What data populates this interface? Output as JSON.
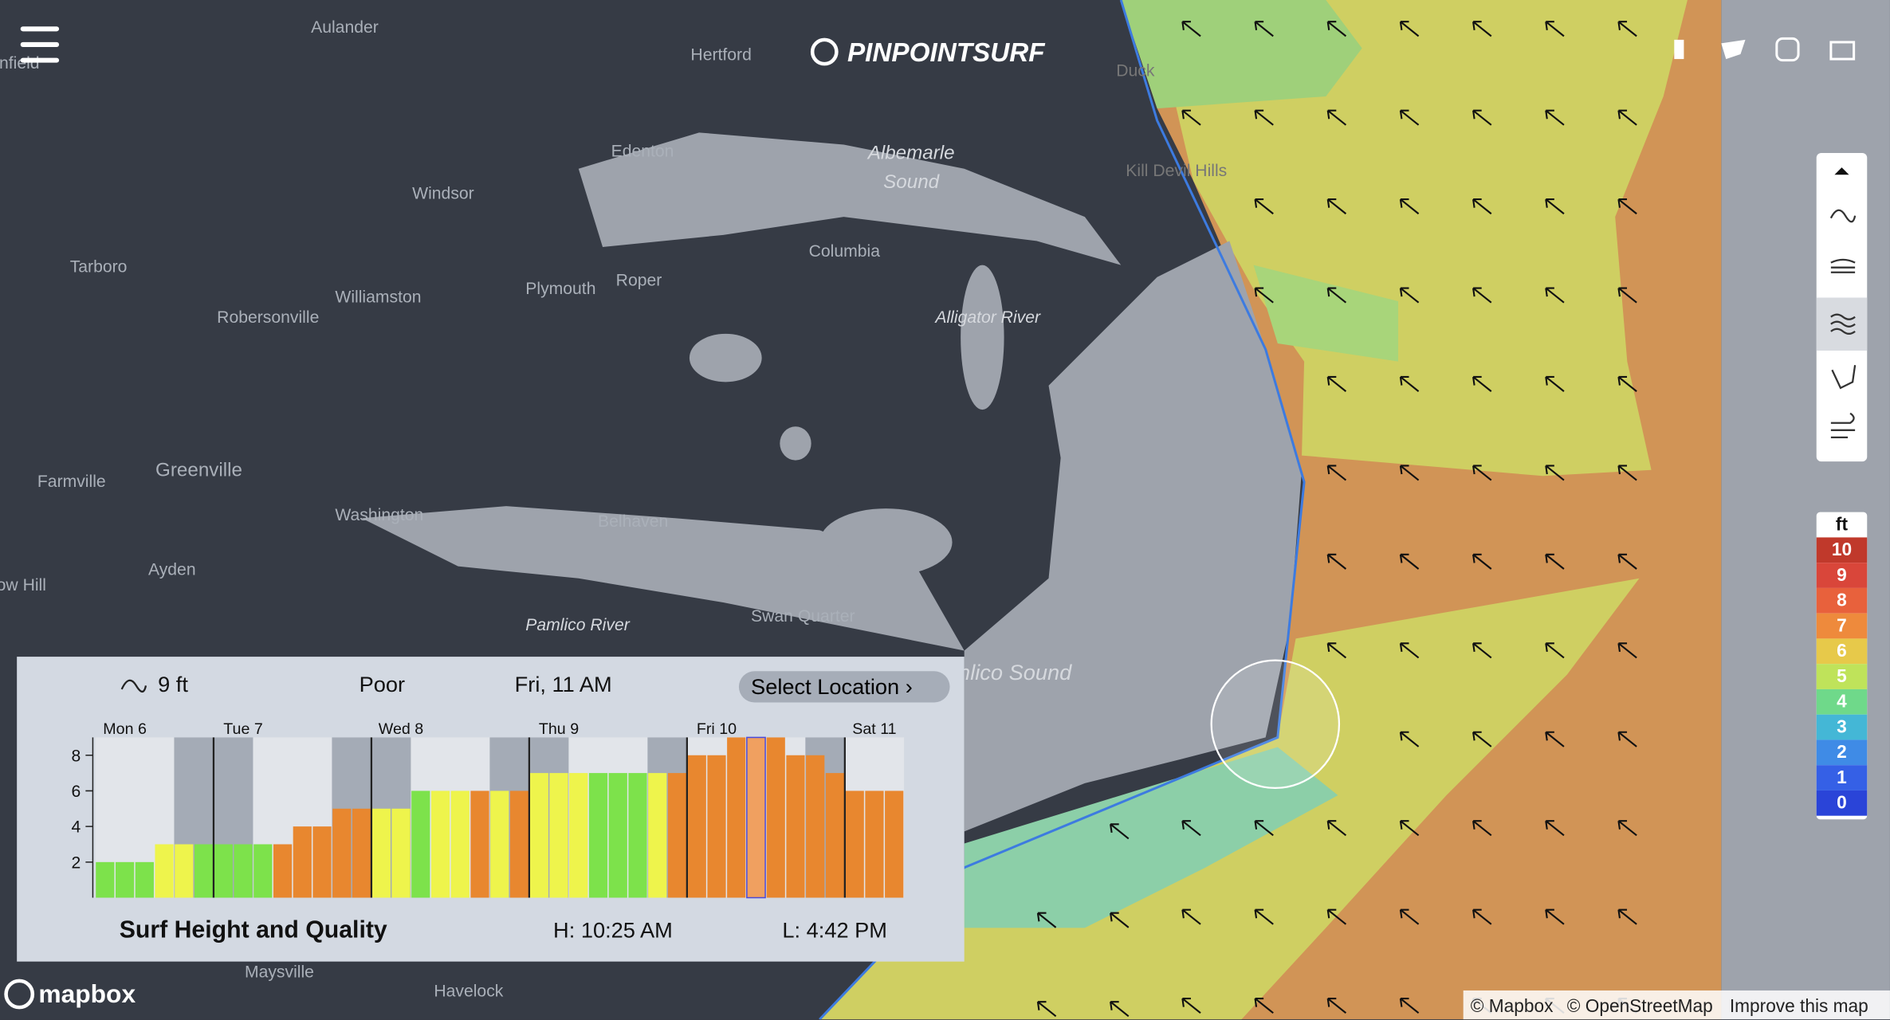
{
  "header": {
    "logo": "PINPOINTSURF"
  },
  "map": {
    "places": [
      "Aulander",
      "Hertford",
      "Enfield",
      "Edenton",
      "Windsor",
      "Albemarle",
      "Sound",
      "Tarboro",
      "Columbia",
      "Williamston",
      "Plymouth",
      "Roper",
      "Robersonville",
      "Alligator River",
      "Greenville",
      "Farmville",
      "Washington",
      "Belhaven",
      "Ayden",
      "Snow Hill",
      "Pamlico River",
      "Swan Quarter",
      "Pamlico Sound",
      "Duck",
      "Kill Devil Hills",
      "Maysville",
      "Havelock"
    ],
    "logo": "mapbox",
    "attribution": [
      "© Mapbox",
      "© OpenStreetMap",
      "Improve this map"
    ]
  },
  "legend": {
    "unit": "ft",
    "levels": [
      10,
      9,
      8,
      7,
      6,
      5,
      4,
      3,
      2,
      1,
      0
    ]
  },
  "panel": {
    "surf_height": "9 ft",
    "quality": "Poor",
    "time": "Fri, 11 AM",
    "button": "Select Location",
    "title": "Surf Height and Quality",
    "high_tide": "H: 10:25 AM",
    "low_tide": "L: 4:42 PM",
    "chart_data": {
      "type": "bar",
      "categories": [
        null,
        "Mon 6",
        null,
        null,
        null,
        null,
        null,
        "Tue 7",
        null,
        null,
        null,
        null,
        null,
        null,
        null,
        "Wed 8",
        null,
        null,
        null,
        null,
        null,
        null,
        null,
        "Thu 9",
        null,
        null,
        null,
        null,
        null,
        null,
        null,
        "Fri 10",
        null,
        null,
        null,
        null,
        null,
        null,
        null,
        "Sat 11",
        null
      ],
      "values": [
        2,
        2,
        2,
        3,
        3,
        3,
        3,
        3,
        3,
        3,
        4,
        4,
        5,
        5,
        5,
        5,
        6,
        6,
        6,
        6,
        6,
        6,
        7,
        7,
        7,
        7,
        7,
        7,
        7,
        7,
        8,
        8,
        9,
        9,
        9,
        8,
        8,
        7,
        6,
        6,
        6
      ],
      "colors": [
        "#7de24b",
        "#7de24b",
        "#7de24b",
        "#eef44c",
        "#eef44c",
        "#7de24b",
        "#7de24b",
        "#7de24b",
        "#7de24b",
        "#e8872f",
        "#e8872f",
        "#e8872f",
        "#e8872f",
        "#e8872f",
        "#eef44c",
        "#eef44c",
        "#7de24b",
        "#eef44c",
        "#eef44c",
        "#e8872f",
        "#eef44c",
        "#e8872f",
        "#eef44c",
        "#eef44c",
        "#eef44c",
        "#7de24b",
        "#7de24b",
        "#7de24b",
        "#eef44c",
        "#e8872f",
        "#e8872f",
        "#e8872f",
        "#e8872f",
        "#f0a060",
        "#e8872f",
        "#e8872f",
        "#e8872f",
        "#e8872f",
        "#e8872f",
        "#e8872f",
        "#e8872f"
      ],
      "ylim": [
        0,
        9
      ],
      "yticks": [
        2,
        4,
        6,
        8
      ]
    }
  }
}
